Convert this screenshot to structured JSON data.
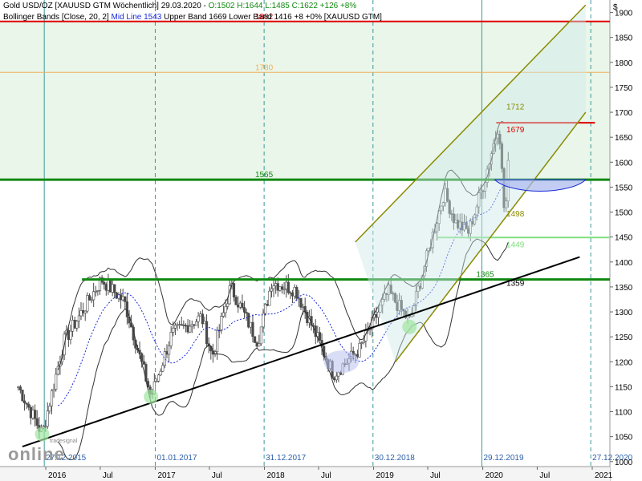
{
  "header": {
    "line1": {
      "instrument": "Gold USD/OZ [XAUUSD GTM  Wöchentlich] 29.03.2020 - ",
      "ohlc_prefix": "O:1502 H:1644 L:1485 ",
      "close": "C:1622 +126 +8%"
    },
    "line2": {
      "indicator": "Bollinger Bands [Close, 20, 2] ",
      "mid": "Mid Line 1543",
      "rest": " Upper Band 1669 Lower Band 1416 +8 +0% [XAUUSD GTM]"
    }
  },
  "logo": {
    "small": "tradesignal",
    "big": "online"
  },
  "colors": {
    "candle": "#4a4a4a",
    "bollinger": "#333333",
    "midline": "#1a2bd8",
    "resistance_red": "#e00000",
    "support_green": "#118811",
    "light_green": "#7ee07e",
    "trend_black": "#000000",
    "channel_olive": "#8a8a00",
    "target_orange": "#f0b05a"
  },
  "chart_data": {
    "type": "candlestick",
    "timeframe": "weekly",
    "y_axis": {
      "unit": "$",
      "min": 990,
      "max": 1925,
      "ticks": [
        1000,
        1050,
        1100,
        1150,
        1200,
        1250,
        1300,
        1350,
        1400,
        1450,
        1500,
        1550,
        1600,
        1650,
        1700,
        1750,
        1800,
        1850,
        1900
      ]
    },
    "x_axis": {
      "ticks": [
        {
          "date": "2016-01-01",
          "label": "2016"
        },
        {
          "date": "2016-07-01",
          "label": "Jul"
        },
        {
          "date": "2017-01-01",
          "label": "2017"
        },
        {
          "date": "2017-07-01",
          "label": "Jul"
        },
        {
          "date": "2018-01-01",
          "label": "2018"
        },
        {
          "date": "2018-07-01",
          "label": "Jul"
        },
        {
          "date": "2019-01-01",
          "label": "2019"
        },
        {
          "date": "2019-07-01",
          "label": "Jul"
        },
        {
          "date": "2020-01-01",
          "label": "2020"
        },
        {
          "date": "2020-07-01",
          "label": "Jul"
        },
        {
          "date": "2021-01-01",
          "label": "2021"
        }
      ],
      "period_markers": [
        {
          "date": "2015-12-27",
          "label": "27.12.2015"
        },
        {
          "date": "2017-01-01",
          "label": "01.01.2017"
        },
        {
          "date": "2017-12-31",
          "label": "31.12.2017"
        },
        {
          "date": "2018-12-30",
          "label": "30.12.2018"
        },
        {
          "date": "2019-12-29",
          "label": "29.12.2019"
        },
        {
          "date": "2020-12-27",
          "label": "27.12.2020"
        }
      ]
    },
    "horizontal_levels": [
      {
        "price": 1882,
        "label": "1882",
        "color": "#e00000"
      },
      {
        "price": 1780,
        "label": "1780",
        "color": "#f0b05a"
      },
      {
        "price": 1565,
        "label": "1565",
        "color": "#118811"
      },
      {
        "price": 1449,
        "label": "1449",
        "color": "#7ee07e"
      },
      {
        "price": 1365,
        "label": "1365",
        "color": "#118811"
      },
      {
        "price": 1679,
        "label": "1679",
        "color": "#e00000"
      }
    ],
    "point_labels": [
      {
        "price": 1712,
        "label": "1712"
      },
      {
        "price": 1498,
        "label": "1498"
      },
      {
        "price": 1359,
        "label": "1359"
      }
    ],
    "trendline": {
      "from": {
        "date": "2015-10-15",
        "price": 1030
      },
      "to": {
        "date": "2020-11-20",
        "price": 1410
      }
    },
    "channel": {
      "upper": {
        "from": {
          "date": "2018-11-01",
          "price": 1440
        },
        "to": {
          "date": "2020-12-10",
          "price": 1915
        }
      },
      "lower": {
        "from": {
          "date": "2019-03-15",
          "price": 1200
        },
        "to": {
          "date": "2020-12-10",
          "price": 1700
        }
      }
    },
    "close_path": [
      {
        "date": "2015-10-01",
        "price": 1150
      },
      {
        "date": "2015-12-20",
        "price": 1055
      },
      {
        "date": "2016-03-01",
        "price": 1240
      },
      {
        "date": "2016-07-05",
        "price": 1365
      },
      {
        "date": "2016-09-20",
        "price": 1320
      },
      {
        "date": "2016-12-18",
        "price": 1130
      },
      {
        "date": "2017-02-25",
        "price": 1255
      },
      {
        "date": "2017-06-05",
        "price": 1290
      },
      {
        "date": "2017-07-10",
        "price": 1210
      },
      {
        "date": "2017-09-10",
        "price": 1350
      },
      {
        "date": "2017-12-10",
        "price": 1240
      },
      {
        "date": "2018-01-25",
        "price": 1360
      },
      {
        "date": "2018-04-15",
        "price": 1345
      },
      {
        "date": "2018-08-20",
        "price": 1175
      },
      {
        "date": "2018-11-15",
        "price": 1225
      },
      {
        "date": "2019-02-20",
        "price": 1340
      },
      {
        "date": "2019-05-01",
        "price": 1280
      },
      {
        "date": "2019-08-25",
        "price": 1540
      },
      {
        "date": "2019-10-01",
        "price": 1480
      },
      {
        "date": "2019-11-15",
        "price": 1460
      },
      {
        "date": "2020-01-05",
        "price": 1560
      },
      {
        "date": "2020-02-24",
        "price": 1680
      },
      {
        "date": "2020-03-15",
        "price": 1480
      },
      {
        "date": "2020-03-29",
        "price": 1622
      }
    ]
  }
}
